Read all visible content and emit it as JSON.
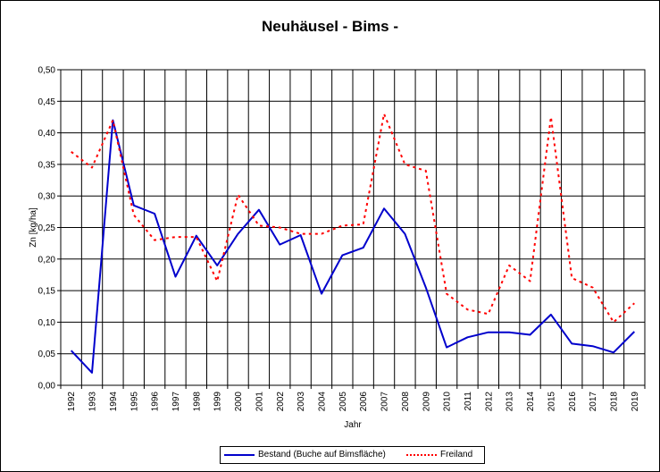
{
  "chart_data": {
    "type": "line",
    "title": "Neuhäusel - Bims -",
    "xlabel": "Jahr",
    "ylabel": "Zn [kg/ha]",
    "categories": [
      "1992",
      "1993",
      "1994",
      "1995",
      "1996",
      "1997",
      "1998",
      "1999",
      "2000",
      "2001",
      "2002",
      "2003",
      "2004",
      "2005",
      "2006",
      "2007",
      "2008",
      "2009",
      "2010",
      "2011",
      "2012",
      "2013",
      "2014",
      "2015",
      "2016",
      "2017",
      "2018",
      "2019"
    ],
    "ylim": [
      0,
      0.5
    ],
    "yticks": [
      "0,00",
      "0,05",
      "0,10",
      "0,15",
      "0,20",
      "0,25",
      "0,30",
      "0,35",
      "0,40",
      "0,45",
      "0,50"
    ],
    "grid": true,
    "legend_position": "bottom",
    "series": [
      {
        "name": "Bestand (Buche auf Bimsfläche)",
        "color": "#0000cc",
        "style": "solid",
        "values": [
          0.055,
          0.02,
          0.42,
          0.285,
          0.272,
          0.172,
          0.237,
          0.19,
          0.24,
          0.278,
          0.223,
          0.238,
          0.145,
          0.206,
          0.218,
          0.28,
          0.24,
          0.155,
          0.06,
          0.076,
          0.084,
          0.084,
          0.08,
          0.112,
          0.066,
          0.062,
          0.052,
          0.085
        ]
      },
      {
        "name": "Freiland",
        "color": "#ff0000",
        "style": "dotted",
        "values": [
          0.37,
          0.345,
          0.42,
          0.27,
          0.23,
          0.235,
          0.235,
          0.165,
          0.302,
          0.253,
          0.25,
          0.24,
          0.24,
          0.253,
          0.255,
          0.43,
          0.35,
          0.34,
          0.145,
          0.12,
          0.113,
          0.19,
          0.165,
          0.425,
          0.17,
          0.155,
          0.1,
          0.13
        ]
      }
    ]
  }
}
